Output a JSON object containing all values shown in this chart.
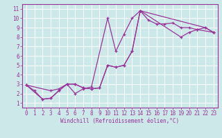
{
  "xlabel": "Windchill (Refroidissement éolien,°C)",
  "bg_color": "#cce8e8",
  "grid_color": "#ffffff",
  "line_color": "#993399",
  "xlim": [
    -0.5,
    23.5
  ],
  "ylim": [
    0.5,
    11.5
  ],
  "xticks": [
    0,
    1,
    2,
    3,
    4,
    5,
    6,
    7,
    8,
    9,
    10,
    11,
    12,
    13,
    14,
    15,
    16,
    17,
    18,
    19,
    20,
    21,
    22,
    23
  ],
  "yticks": [
    1,
    2,
    3,
    4,
    5,
    6,
    7,
    8,
    9,
    10,
    11
  ],
  "c1x": [
    0,
    1,
    2,
    3,
    4,
    5,
    6,
    7,
    8,
    10,
    11,
    12,
    13,
    14,
    15,
    16,
    17,
    18,
    19,
    20,
    21,
    23
  ],
  "c1y": [
    2.9,
    2.3,
    1.4,
    1.5,
    2.3,
    3.0,
    2.0,
    2.5,
    2.7,
    10.0,
    6.5,
    8.3,
    10.0,
    10.8,
    9.8,
    9.4,
    9.4,
    9.5,
    9.0,
    9.0,
    8.8,
    8.5
  ],
  "c2x": [
    0,
    3,
    4,
    5,
    6,
    7,
    8,
    9,
    10,
    11,
    12,
    13,
    14,
    19,
    20,
    21,
    22,
    23
  ],
  "c2y": [
    2.9,
    2.3,
    2.5,
    3.0,
    3.0,
    2.6,
    2.5,
    2.6,
    5.0,
    4.8,
    5.0,
    6.5,
    10.8,
    8.0,
    8.5,
    8.8,
    9.0,
    8.5
  ],
  "c3x": [
    0,
    2,
    3,
    4,
    5,
    6,
    7,
    8,
    9,
    10,
    11,
    12,
    13,
    14,
    22,
    23
  ],
  "c3y": [
    2.9,
    1.4,
    1.5,
    2.3,
    3.0,
    3.0,
    2.6,
    2.5,
    2.6,
    5.0,
    4.8,
    5.0,
    6.5,
    10.8,
    9.0,
    8.5
  ],
  "tick_fontsize": 5.5,
  "xlabel_fontsize": 5.5
}
